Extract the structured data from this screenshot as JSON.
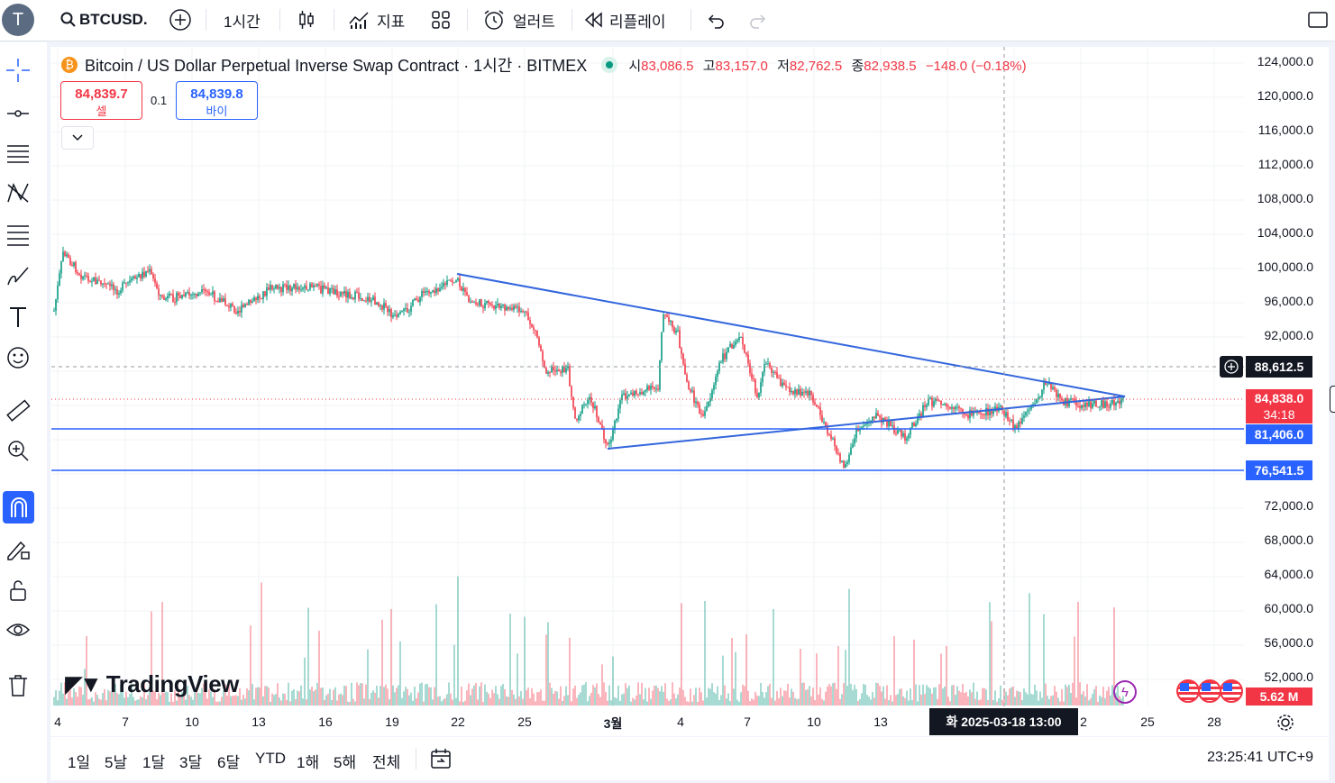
{
  "toolbar": {
    "avatar_letter": "T",
    "symbol": "BTCUSD.F",
    "interval": "1시간",
    "indicators_label": "지표",
    "alert_label": "얼러트",
    "replay_label": "리플레이"
  },
  "legend": {
    "coin_icon": "₿",
    "title": "Bitcoin / US Dollar Perpetual Inverse Swap Contract · 1시간 · BITMEX",
    "open_label": "시",
    "open": "83,086.5",
    "high_label": "고",
    "high": "83,157.0",
    "low_label": "저",
    "low": "82,762.5",
    "close_label": "종",
    "close": "82,938.5",
    "change": "−148.0 (−0.18%)"
  },
  "trade": {
    "sell_price": "84,839.7",
    "sell_label": "셀",
    "qty": "0.1",
    "buy_price": "84,839.8",
    "buy_label": "바이"
  },
  "price_axis": [
    "124,000.0",
    "120,000.0",
    "116,000.0",
    "112,000.0",
    "108,000.0",
    "104,000.0",
    "100,000.0",
    "96,000.0",
    "92,000.0",
    "72,000.0",
    "68,000.0",
    "64,000.0",
    "60,000.0",
    "56,000.0",
    "52,000.0"
  ],
  "price_labels": {
    "crosshair": "88,612.5",
    "last": "84,838.0",
    "countdown": "34:18",
    "line1": "81,406.0",
    "line2": "76,541.5",
    "volume": "5.62 M"
  },
  "time_axis": [
    "4",
    "7",
    "10",
    "13",
    "16",
    "19",
    "22",
    "25",
    "3월",
    "4",
    "7",
    "10",
    "13",
    "2",
    "25",
    "28"
  ],
  "crosshair_date": "화 2025-03-18   13:00",
  "watermark": "TradingView",
  "ranges": [
    "1일",
    "5날",
    "1달",
    "3달",
    "6달",
    "YTD",
    "1해",
    "5해",
    "전체"
  ],
  "clock": "23:25:41 UTC+9",
  "colors": {
    "up": "#089981",
    "down": "#f23645",
    "accent": "#2962ff",
    "line": "#3366dd"
  }
}
